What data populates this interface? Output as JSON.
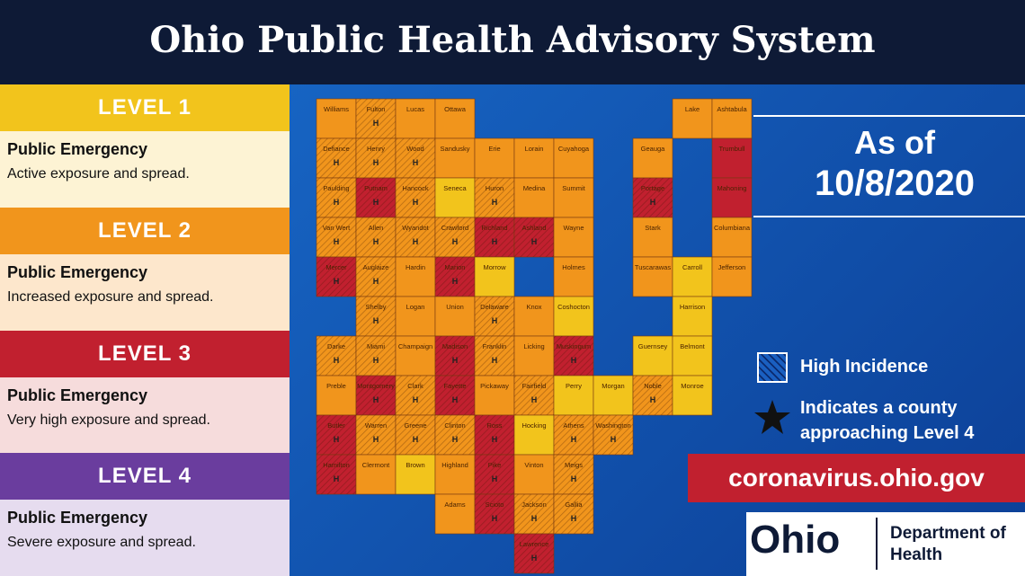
{
  "header": {
    "title": "Ohio Public Health Advisory System"
  },
  "levels": [
    {
      "label": "LEVEL 1",
      "heading": "Public Emergency",
      "description": "Active exposure and spread.",
      "color": "#f2c41c"
    },
    {
      "label": "LEVEL 2",
      "heading": "Public Emergency",
      "description": "Increased exposure and spread.",
      "color": "#f1951c"
    },
    {
      "label": "LEVEL 3",
      "heading": "Public Emergency",
      "description": "Very high exposure and spread.",
      "color": "#c1202f"
    },
    {
      "label": "LEVEL 4",
      "heading": "Public Emergency",
      "description": "Severe exposure and spread.",
      "color": "#6a3d9e"
    }
  ],
  "as_of": {
    "label": "As of",
    "date": "10/8/2020"
  },
  "legend": [
    {
      "label": "High Incidence"
    },
    {
      "label": "Indicates a county approaching Level 4"
    }
  ],
  "website": "coronavirus.ohio.gov",
  "logo": {
    "name": "Ohio",
    "department": "Department of Health"
  },
  "map": {
    "counties": [
      {
        "name": "Williams",
        "level": 2
      },
      {
        "name": "Fulton",
        "level": 2,
        "mark": "H"
      },
      {
        "name": "Lucas",
        "level": 2
      },
      {
        "name": "Ottawa",
        "level": 2
      },
      {
        "name": "Lake",
        "level": 2
      },
      {
        "name": "Ashtabula",
        "level": 2
      },
      {
        "name": "Defiance",
        "level": 2,
        "mark": "H"
      },
      {
        "name": "Henry",
        "level": 2,
        "mark": "H"
      },
      {
        "name": "Wood",
        "level": 2,
        "mark": "H"
      },
      {
        "name": "Sandusky",
        "level": 2
      },
      {
        "name": "Erie",
        "level": 2
      },
      {
        "name": "Lorain",
        "level": 2
      },
      {
        "name": "Cuyahoga",
        "level": 2
      },
      {
        "name": "Geauga",
        "level": 2
      },
      {
        "name": "Trumbull",
        "level": 3
      },
      {
        "name": "Paulding",
        "level": 2,
        "mark": "H"
      },
      {
        "name": "Putnam",
        "level": 3,
        "mark": "H"
      },
      {
        "name": "Hancock",
        "level": 2,
        "mark": "H"
      },
      {
        "name": "Seneca",
        "level": 1
      },
      {
        "name": "Huron",
        "level": 2,
        "mark": "H"
      },
      {
        "name": "Medina",
        "level": 2
      },
      {
        "name": "Summit",
        "level": 2
      },
      {
        "name": "Portage",
        "level": 3,
        "mark": "H"
      },
      {
        "name": "Mahoning",
        "level": 3
      },
      {
        "name": "Van Wert",
        "level": 2,
        "mark": "H"
      },
      {
        "name": "Allen",
        "level": 2,
        "mark": "H"
      },
      {
        "name": "Wyandot",
        "level": 2,
        "mark": "H"
      },
      {
        "name": "Crawford",
        "level": 2,
        "mark": "H"
      },
      {
        "name": "Richland",
        "level": 3,
        "mark": "H"
      },
      {
        "name": "Ashland",
        "level": 3,
        "mark": "H"
      },
      {
        "name": "Wayne",
        "level": 2
      },
      {
        "name": "Stark",
        "level": 2
      },
      {
        "name": "Columbiana",
        "level": 2
      },
      {
        "name": "Mercer",
        "level": 3,
        "mark": "H"
      },
      {
        "name": "Auglaize",
        "level": 2,
        "mark": "H"
      },
      {
        "name": "Hardin",
        "level": 2
      },
      {
        "name": "Marion",
        "level": 3,
        "mark": "H"
      },
      {
        "name": "Morrow",
        "level": 1
      },
      {
        "name": "Holmes",
        "level": 2
      },
      {
        "name": "Tuscarawas",
        "level": 2
      },
      {
        "name": "Carroll",
        "level": 1
      },
      {
        "name": "Jefferson",
        "level": 2
      },
      {
        "name": "Shelby",
        "level": 2,
        "mark": "H"
      },
      {
        "name": "Logan",
        "level": 2
      },
      {
        "name": "Union",
        "level": 2
      },
      {
        "name": "Delaware",
        "level": 2,
        "mark": "H"
      },
      {
        "name": "Knox",
        "level": 2
      },
      {
        "name": "Coshocton",
        "level": 1
      },
      {
        "name": "Harrison",
        "level": 1
      },
      {
        "name": "Darke",
        "level": 2,
        "mark": "H"
      },
      {
        "name": "Miami",
        "level": 2,
        "mark": "H"
      },
      {
        "name": "Champaign",
        "level": 2
      },
      {
        "name": "Madison",
        "level": 3,
        "mark": "H"
      },
      {
        "name": "Franklin",
        "level": 2,
        "mark": "H"
      },
      {
        "name": "Licking",
        "level": 2
      },
      {
        "name": "Muskingum",
        "level": 3,
        "mark": "H"
      },
      {
        "name": "Guernsey",
        "level": 1
      },
      {
        "name": "Belmont",
        "level": 1
      },
      {
        "name": "Preble",
        "level": 2
      },
      {
        "name": "Montgomery",
        "level": 3,
        "mark": "H"
      },
      {
        "name": "Clark",
        "level": 2,
        "mark": "H"
      },
      {
        "name": "Fayette",
        "level": 3,
        "mark": "H"
      },
      {
        "name": "Pickaway",
        "level": 2
      },
      {
        "name": "Fairfield",
        "level": 2,
        "mark": "H"
      },
      {
        "name": "Perry",
        "level": 1
      },
      {
        "name": "Morgan",
        "level": 1
      },
      {
        "name": "Noble",
        "level": 2,
        "mark": "H"
      },
      {
        "name": "Monroe",
        "level": 1
      },
      {
        "name": "Butler",
        "level": 3,
        "mark": "H"
      },
      {
        "name": "Warren",
        "level": 2,
        "mark": "H"
      },
      {
        "name": "Greene",
        "level": 2,
        "mark": "H"
      },
      {
        "name": "Clinton",
        "level": 2,
        "mark": "H"
      },
      {
        "name": "Ross",
        "level": 3,
        "mark": "H"
      },
      {
        "name": "Hocking",
        "level": 1
      },
      {
        "name": "Athens",
        "level": 2,
        "mark": "H"
      },
      {
        "name": "Washington",
        "level": 2,
        "mark": "H"
      },
      {
        "name": "Hamilton",
        "level": 3,
        "mark": "H"
      },
      {
        "name": "Clermont",
        "level": 2
      },
      {
        "name": "Brown",
        "level": 1
      },
      {
        "name": "Highland",
        "level": 2
      },
      {
        "name": "Pike",
        "level": 3,
        "mark": "H"
      },
      {
        "name": "Vinton",
        "level": 2
      },
      {
        "name": "Meigs",
        "level": 2,
        "mark": "H"
      },
      {
        "name": "Adams",
        "level": 2
      },
      {
        "name": "Scioto",
        "level": 3,
        "mark": "H"
      },
      {
        "name": "Jackson",
        "level": 2,
        "mark": "H"
      },
      {
        "name": "Gallia",
        "level": 2,
        "mark": "H"
      },
      {
        "name": "Lawrence",
        "level": 3,
        "mark": "H"
      }
    ]
  }
}
